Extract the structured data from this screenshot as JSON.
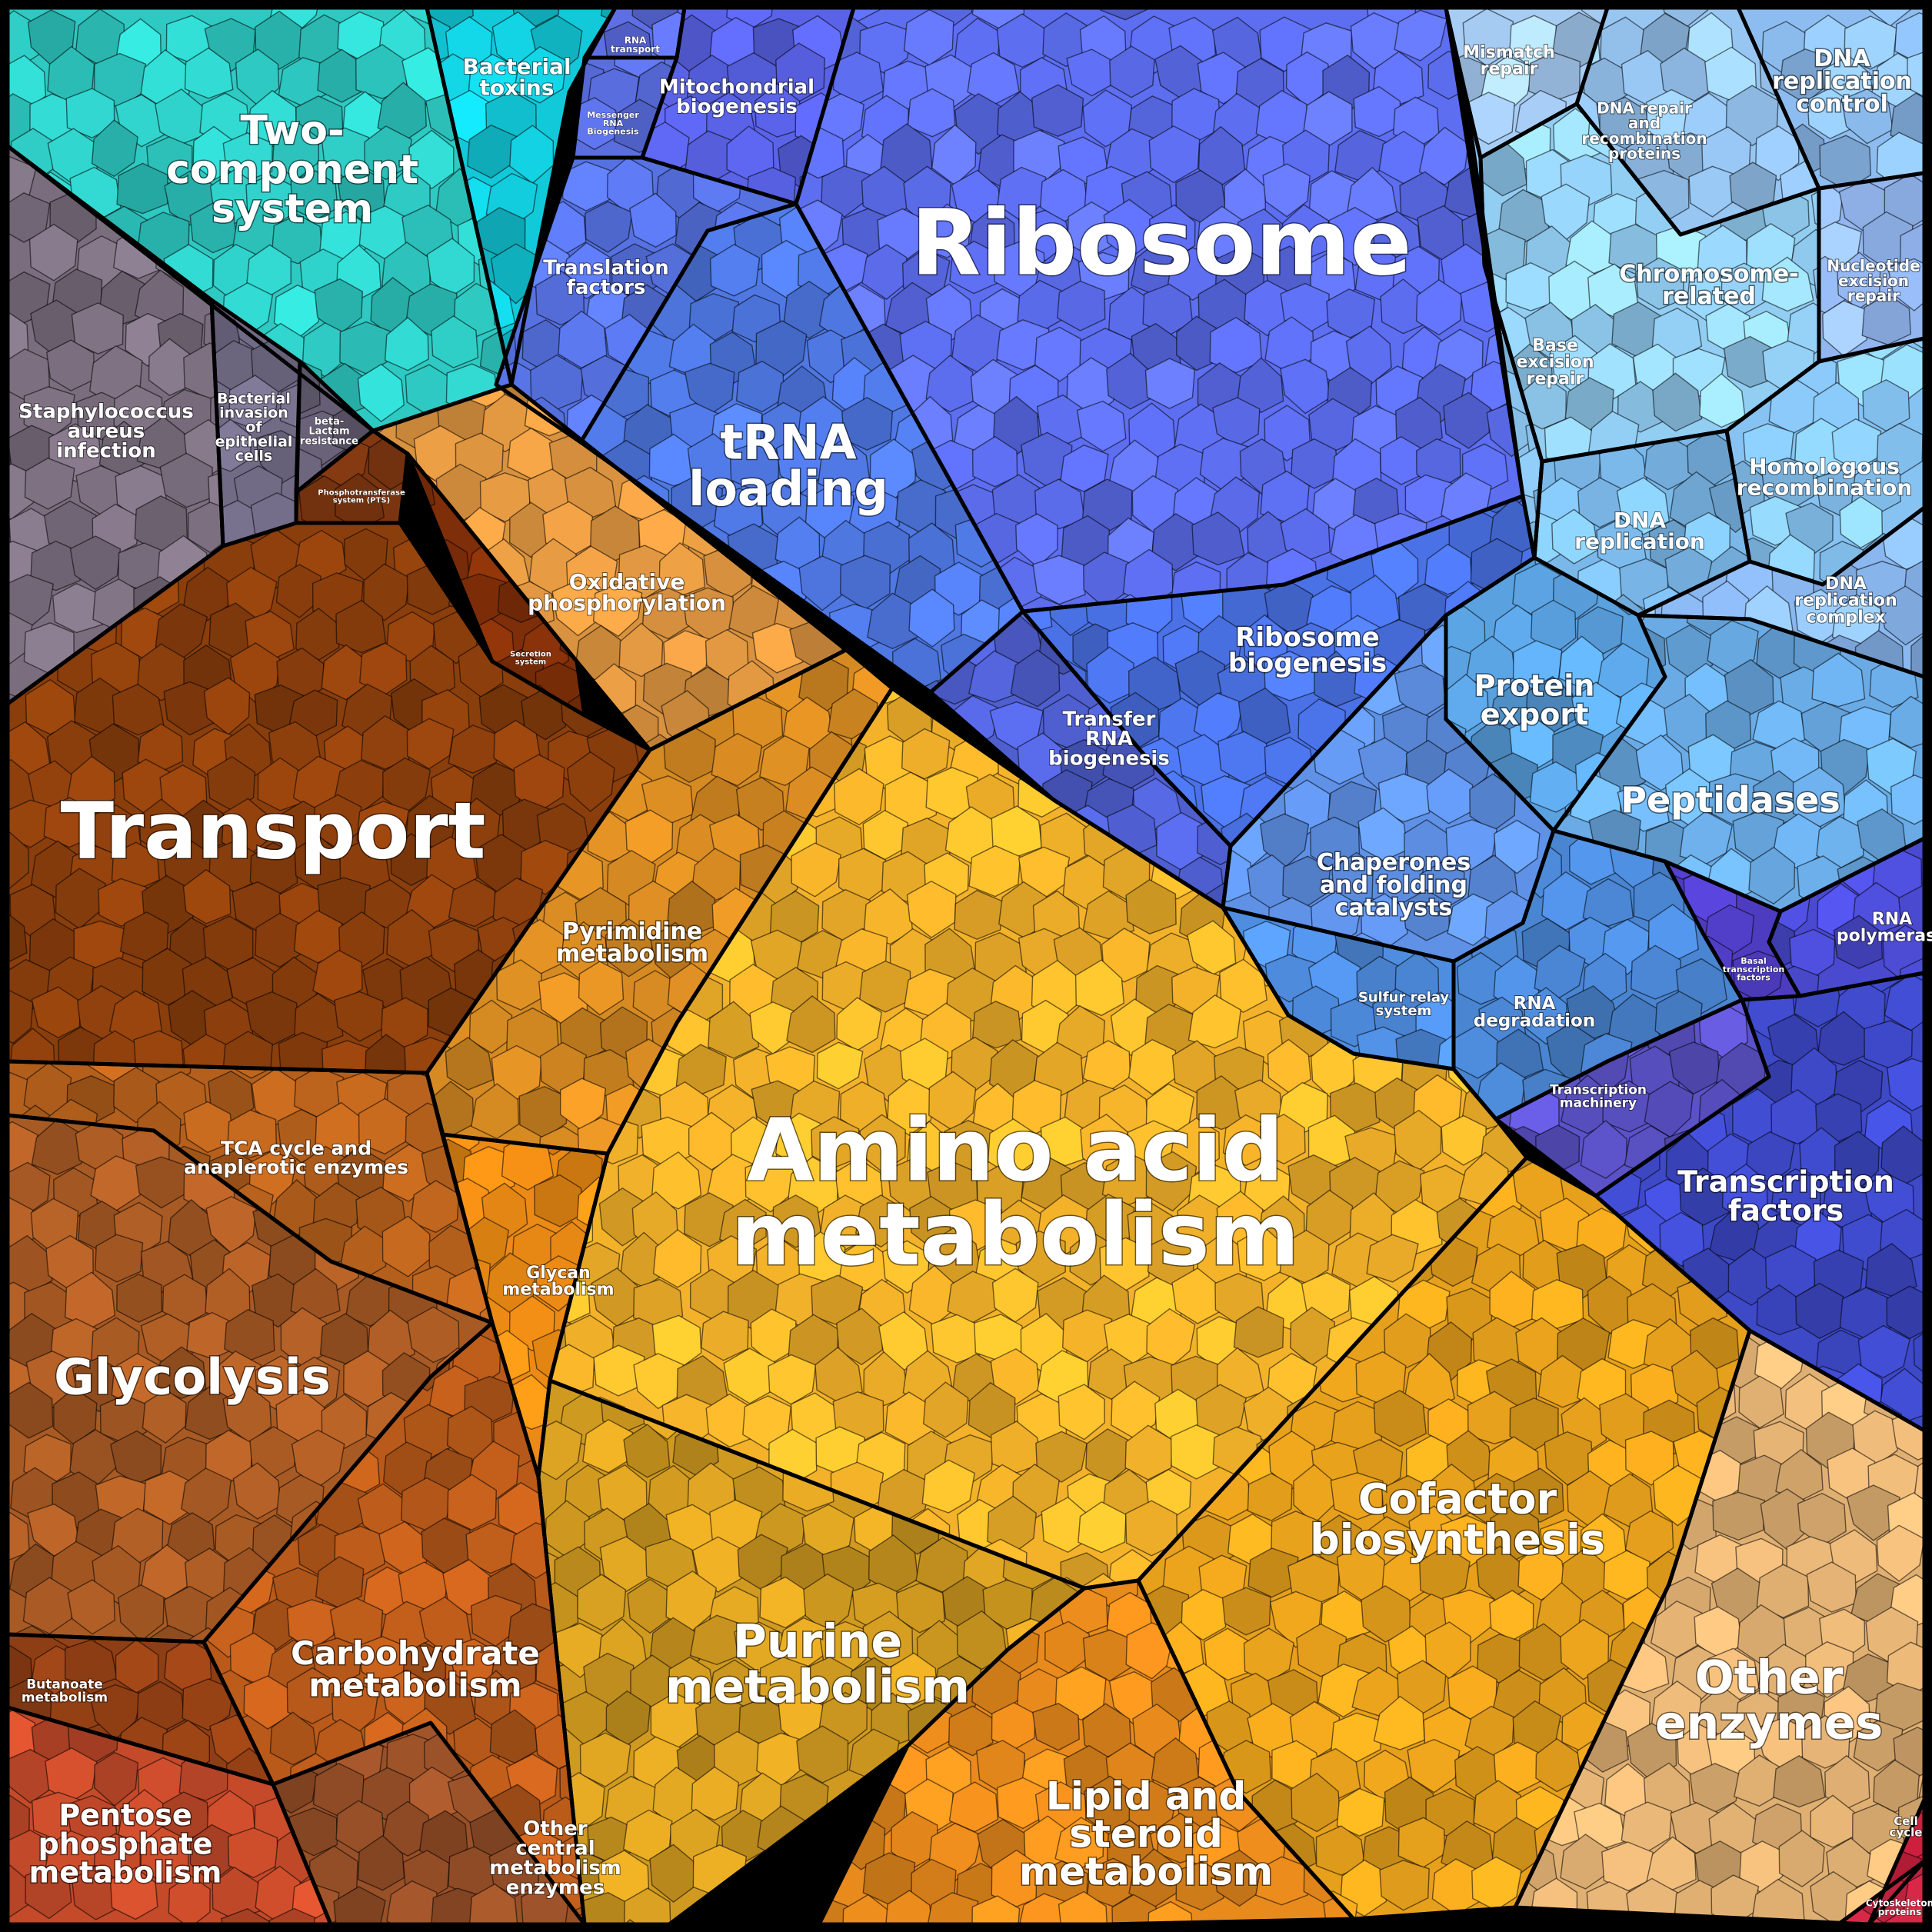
{
  "diagram": {
    "background": "#000000",
    "regions": [
      {
        "id": "two-component",
        "label": [
          "Two-",
          "component",
          "system"
        ],
        "color": "#2ec9c2"
      },
      {
        "id": "bacterial-toxins",
        "label": [
          "Bacterial",
          "toxins"
        ],
        "color": "#12c9d9"
      },
      {
        "id": "rna-transport",
        "label": [
          "RNA",
          "transport"
        ],
        "color": "#5e6fe6"
      },
      {
        "id": "messenger-rna",
        "label": [
          "Messenger",
          "RNA",
          "Biogenesis"
        ],
        "color": "#5a6ee0"
      },
      {
        "id": "mito-biogenesis",
        "label": [
          "Mitochondrial",
          "biogenesis"
        ],
        "color": "#5a63e8"
      },
      {
        "id": "ribosome",
        "label": [
          "Ribosome"
        ],
        "color": "#5d6ef0"
      },
      {
        "id": "translation-factors",
        "label": [
          "Translation",
          "factors"
        ],
        "color": "#5671e0"
      },
      {
        "id": "trna-loading",
        "label": [
          "tRNA",
          "loading"
        ],
        "color": "#4f78e3"
      },
      {
        "id": "mismatch-repair",
        "label": [
          "Mismatch",
          "repair"
        ],
        "color": "#a7cdf5"
      },
      {
        "id": "dna-repair",
        "label": [
          "DNA repair",
          "and",
          "recombination",
          "proteins"
        ],
        "color": "#98c6f3"
      },
      {
        "id": "dna-replication-control",
        "label": [
          "DNA",
          "replication",
          "control"
        ],
        "color": "#8dbdf0"
      },
      {
        "id": "chromosome-related",
        "label": [
          "Chromosome-",
          "related"
        ],
        "color": "#92cdf2"
      },
      {
        "id": "nucleotide-excision",
        "label": [
          "Nucleotide",
          "excision",
          "repair"
        ],
        "color": "#93b6f0"
      },
      {
        "id": "base-excision",
        "label": [
          "Base",
          "excision",
          "repair"
        ],
        "color": "#8ac4ee"
      },
      {
        "id": "homologous",
        "label": [
          "Homologous",
          "recombination"
        ],
        "color": "#86c3f2"
      },
      {
        "id": "dna-replication",
        "label": [
          "DNA",
          "replication"
        ],
        "color": "#7bb8ea"
      },
      {
        "id": "dna-replication-complex",
        "label": [
          "DNA",
          "replication",
          "complex"
        ],
        "color": "#8ab7f0"
      },
      {
        "id": "staph",
        "label": [
          "Staphylococcus",
          "aureus",
          "infection"
        ],
        "color": "#7a6e7e"
      },
      {
        "id": "bacterial-invasion",
        "label": [
          "Bacterial",
          "invasion",
          "of",
          "epithelial",
          "cells"
        ],
        "color": "#716b86"
      },
      {
        "id": "beta-lactam",
        "label": [
          "beta-",
          "Lactam",
          "resistance"
        ],
        "color": "#655e74"
      },
      {
        "id": "pts",
        "label": [
          "Phosphotransferase",
          "system (PTS)"
        ],
        "color": "#7a3510"
      },
      {
        "id": "oxidative",
        "label": [
          "Oxidative",
          "phosphorylation"
        ],
        "color": "#d9923f"
      },
      {
        "id": "secretion",
        "label": [
          "Secretion",
          "system"
        ],
        "color": "#7e2e08"
      },
      {
        "id": "ribosome-biogenesis",
        "label": [
          "Ribosome",
          "biogenesis"
        ],
        "color": "#4a72e6"
      },
      {
        "id": "transfer-rna",
        "label": [
          "Transfer",
          "RNA",
          "biogenesis"
        ],
        "color": "#4f5fd0"
      },
      {
        "id": "protein-export",
        "label": [
          "Protein",
          "export"
        ],
        "color": "#5aa1e0"
      },
      {
        "id": "peptidases",
        "label": [
          "Peptidases"
        ],
        "color": "#6aabe5"
      },
      {
        "id": "transport",
        "label": [
          "Transport"
        ],
        "color": "#8a3e0c"
      },
      {
        "id": "chaperones",
        "label": [
          "Chaperones",
          "and folding",
          "catalysts"
        ],
        "color": "#5f91e6"
      },
      {
        "id": "pyrimidine",
        "label": [
          "Pyrimidine",
          "metabolism"
        ],
        "color": "#d68a22"
      },
      {
        "id": "rna-polymerase",
        "label": [
          "RNA",
          "polymerase"
        ],
        "color": "#4a4ad0"
      },
      {
        "id": "basal-tf",
        "label": [
          "Basal",
          "transcription",
          "factors"
        ],
        "color": "#4d3cc0"
      },
      {
        "id": "sulfur-relay",
        "label": [
          "Sulfur relay",
          "system"
        ],
        "color": "#4f8de0"
      },
      {
        "id": "rna-degradation",
        "label": [
          "RNA",
          "degradation"
        ],
        "color": "#4a85d2"
      },
      {
        "id": "transcription-machinery",
        "label": [
          "Transcription",
          "machinery"
        ],
        "color": "#5c52c8"
      },
      {
        "id": "tca",
        "label": [
          "TCA cycle and",
          "anaplerotic enzymes"
        ],
        "color": "#b4601c"
      },
      {
        "id": "amino-acid",
        "label": [
          "Amino acid",
          "metabolism"
        ],
        "color": "#f3b22a"
      },
      {
        "id": "transcription-factors",
        "label": [
          "Transcription",
          "factors"
        ],
        "color": "#3e49c8"
      },
      {
        "id": "glycan",
        "label": [
          "Glycan",
          "metabolism"
        ],
        "color": "#eb8a14"
      },
      {
        "id": "glycolysis",
        "label": [
          "Glycolysis"
        ],
        "color": "#a85a24"
      },
      {
        "id": "cofactor",
        "label": [
          "Cofactor",
          "biosynthesis"
        ],
        "color": "#e6a01c"
      },
      {
        "id": "purine",
        "label": [
          "Purine",
          "metabolism"
        ],
        "color": "#d09a20"
      },
      {
        "id": "carbohydrate",
        "label": [
          "Carbohydrate",
          "metabolism"
        ],
        "color": "#b95a1a"
      },
      {
        "id": "other-enzymes",
        "label": [
          "Other",
          "enzymes"
        ],
        "color": "#e0b073"
      },
      {
        "id": "butanoate",
        "label": [
          "Butanoate",
          "metabolism"
        ],
        "color": "#8e3e14"
      },
      {
        "id": "lipid",
        "label": [
          "Lipid and",
          "steroid",
          "metabolism"
        ],
        "color": "#e88a1c"
      },
      {
        "id": "cell-cycle",
        "label": [
          "Cell",
          "cycle"
        ],
        "color": "#d42040"
      },
      {
        "id": "pentose",
        "label": [
          "Pentose",
          "phosphate",
          "metabolism"
        ],
        "color": "#c44a2a"
      },
      {
        "id": "other-central",
        "label": [
          "Other",
          "central",
          "metabolism",
          "enzymes"
        ],
        "color": "#985028"
      },
      {
        "id": "cytoskeleton",
        "label": [
          "Cytoskeleton",
          "proteins"
        ],
        "color": "#d82848"
      }
    ]
  }
}
